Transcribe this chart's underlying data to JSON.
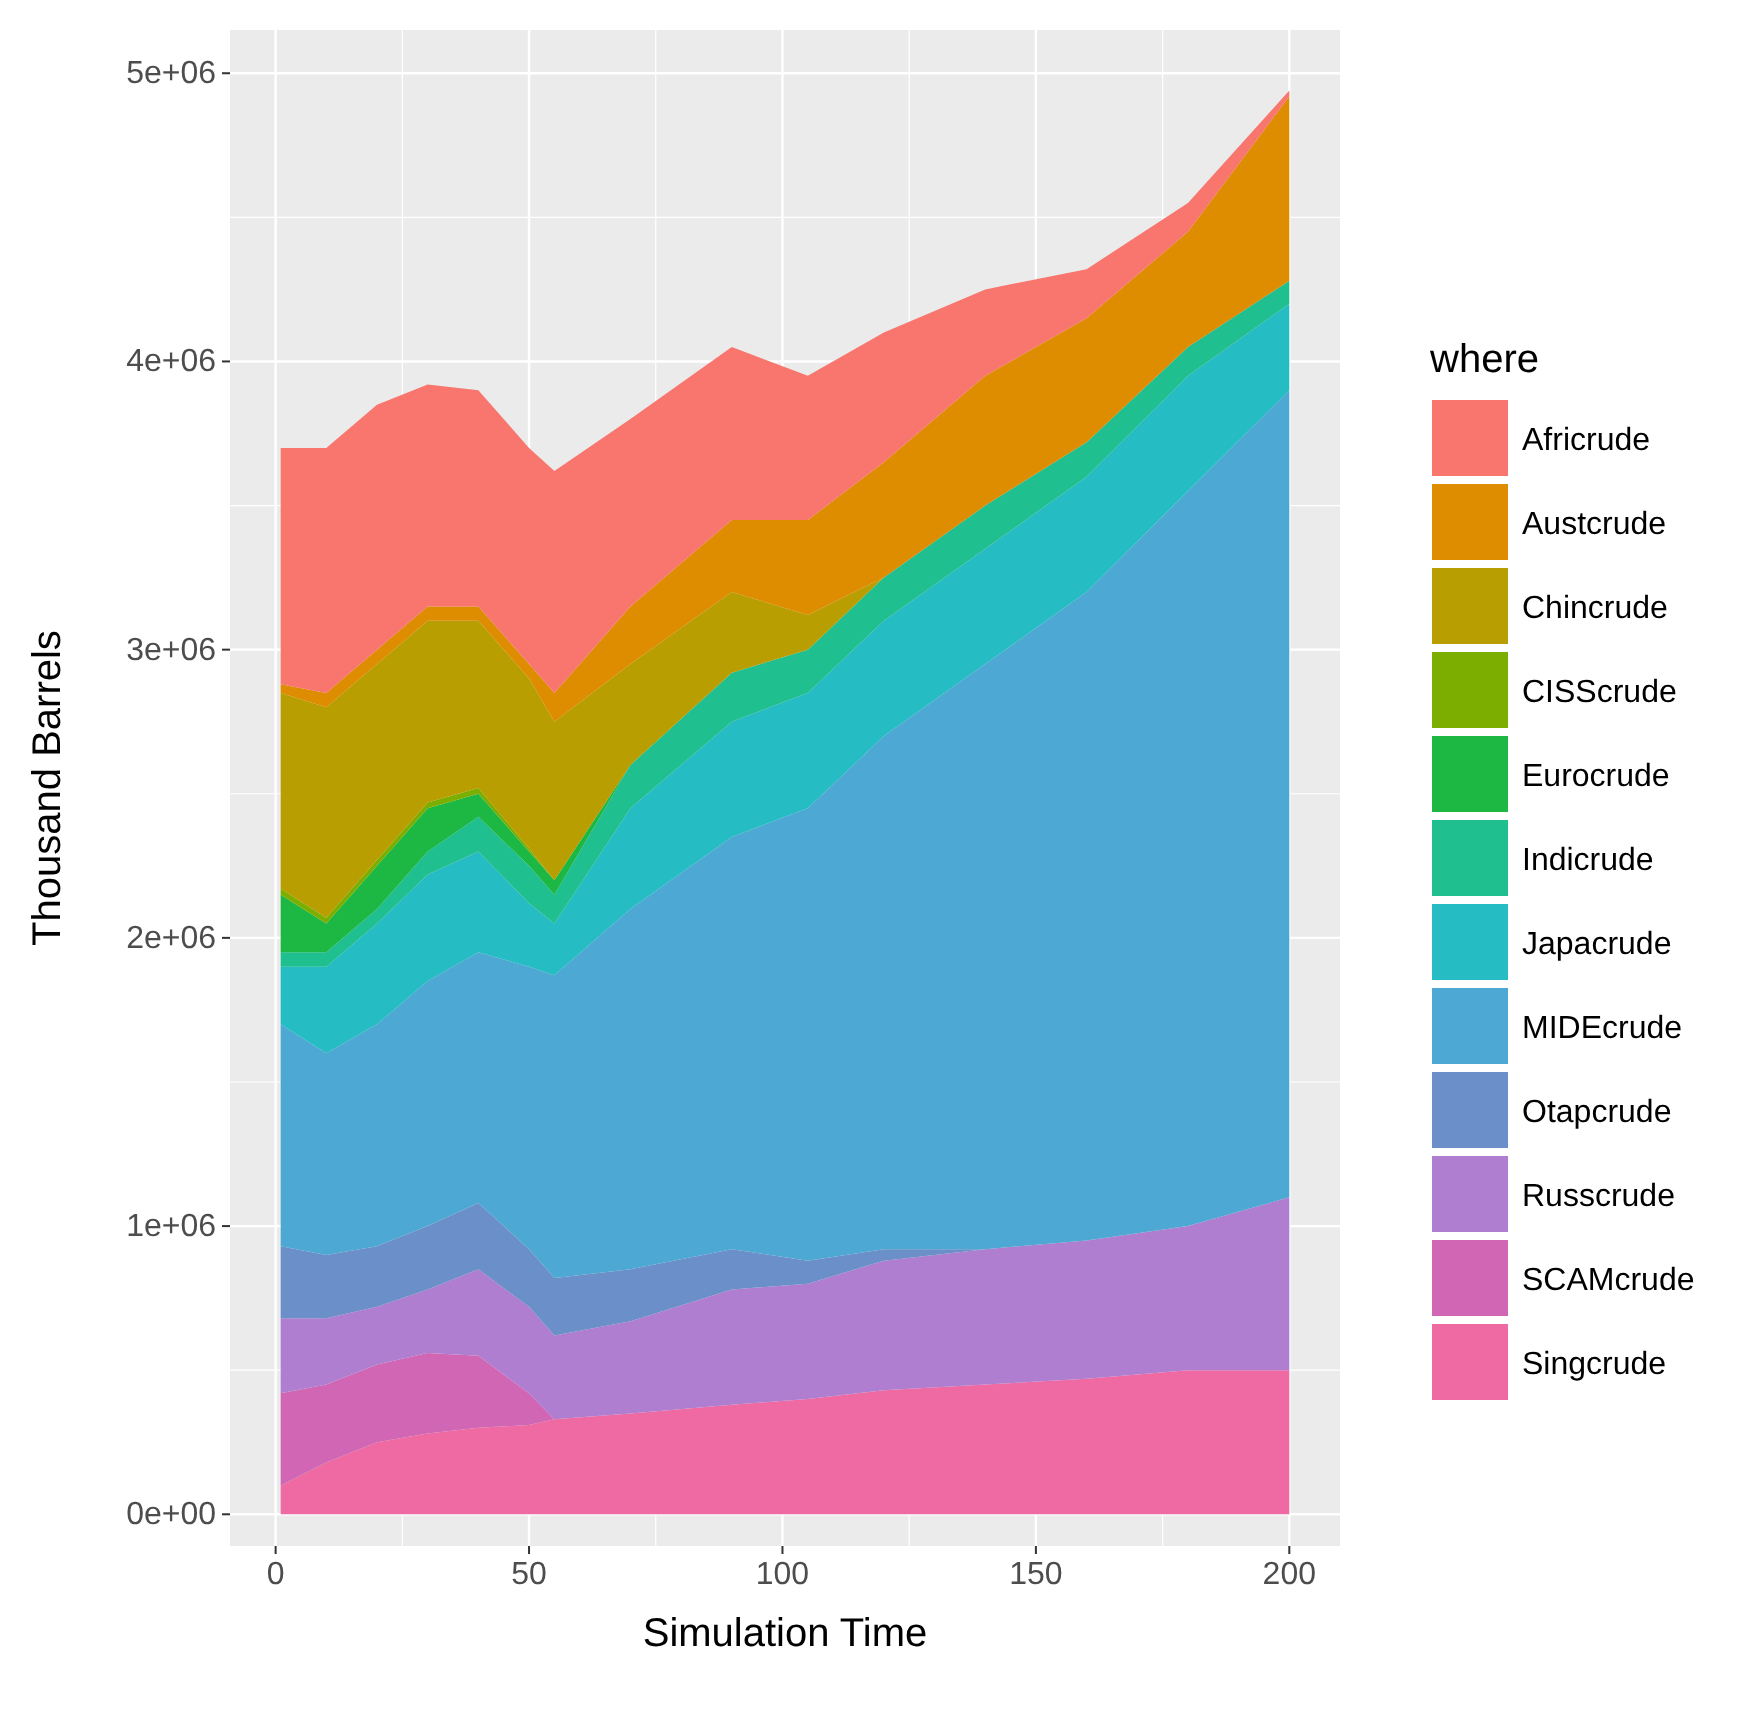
{
  "chart_data": {
    "type": "area",
    "stacked": true,
    "xlabel": "Simulation Time",
    "ylabel": "Thousand Barrels",
    "legend_title": "where",
    "legend": "right",
    "grid": true,
    "x": [
      1,
      10,
      20,
      30,
      40,
      50,
      55,
      70,
      90,
      105,
      120,
      140,
      160,
      180,
      200
    ],
    "xlim": [
      -9,
      210
    ],
    "xticks": [
      0,
      50,
      100,
      150,
      200
    ],
    "ylim": [
      -110000,
      5150000
    ],
    "yticks": [
      {
        "value": 0,
        "label": "0e+00"
      },
      {
        "value": 1000000,
        "label": "1e+06"
      },
      {
        "value": 2000000,
        "label": "2e+06"
      },
      {
        "value": 3000000,
        "label": "3e+06"
      },
      {
        "value": 4000000,
        "label": "4e+06"
      },
      {
        "value": 5000000,
        "label": "5e+06"
      }
    ],
    "series": [
      {
        "name": "Singcrude",
        "color": "#ef6aa2",
        "values": [
          100000,
          180000,
          250000,
          280000,
          300000,
          310000,
          330000,
          350000,
          380000,
          400000,
          430000,
          450000,
          470000,
          500000,
          500000
        ]
      },
      {
        "name": "SCAMcrude",
        "color": "#d066b4",
        "values": [
          320000,
          270000,
          270000,
          280000,
          250000,
          110000,
          0,
          0,
          0,
          0,
          0,
          0,
          0,
          0,
          0
        ]
      },
      {
        "name": "Russcrude",
        "color": "#b07ed0",
        "values": [
          260000,
          230000,
          200000,
          220000,
          300000,
          300000,
          290000,
          320000,
          400000,
          400000,
          450000,
          470000,
          480000,
          500000,
          600000
        ]
      },
      {
        "name": "Otapcrude",
        "color": "#6b8fc8",
        "values": [
          250000,
          220000,
          210000,
          220000,
          230000,
          200000,
          200000,
          180000,
          140000,
          80000,
          40000,
          0,
          0,
          0,
          0
        ]
      },
      {
        "name": "MIDEcrude",
        "color": "#4ea8d4",
        "values": [
          770000,
          700000,
          770000,
          850000,
          870000,
          980000,
          1050000,
          1250000,
          1430000,
          1570000,
          1780000,
          2030000,
          2250000,
          2550000,
          2800000
        ]
      },
      {
        "name": "Japacrude",
        "color": "#26bcc4",
        "values": [
          200000,
          300000,
          350000,
          370000,
          350000,
          220000,
          180000,
          350000,
          400000,
          400000,
          400000,
          400000,
          400000,
          400000,
          300000
        ]
      },
      {
        "name": "Indicrude",
        "color": "#1fbf8f",
        "values": [
          50000,
          50000,
          50000,
          80000,
          120000,
          130000,
          100000,
          150000,
          170000,
          150000,
          150000,
          150000,
          120000,
          100000,
          80000
        ]
      },
      {
        "name": "Eurocrude",
        "color": "#1db843",
        "values": [
          200000,
          100000,
          150000,
          150000,
          80000,
          50000,
          50000,
          0,
          0,
          0,
          0,
          0,
          0,
          0,
          0
        ]
      },
      {
        "name": "CISScrude",
        "color": "#7cae00",
        "values": [
          20000,
          20000,
          20000,
          20000,
          20000,
          10000,
          0,
          0,
          0,
          0,
          0,
          0,
          0,
          0,
          0
        ]
      },
      {
        "name": "Chincrude",
        "color": "#b89e00",
        "values": [
          680000,
          730000,
          680000,
          630000,
          580000,
          590000,
          550000,
          350000,
          280000,
          120000,
          0,
          0,
          0,
          0,
          0
        ]
      },
      {
        "name": "Austcrude",
        "color": "#de8c00",
        "values": [
          30000,
          50000,
          50000,
          50000,
          50000,
          50000,
          100000,
          200000,
          250000,
          330000,
          400000,
          450000,
          430000,
          400000,
          640000
        ]
      },
      {
        "name": "Africrude",
        "color": "#f8766d",
        "values": [
          820000,
          850000,
          850000,
          770000,
          750000,
          750000,
          770000,
          650000,
          600000,
          500000,
          450000,
          300000,
          170000,
          100000,
          20000
        ]
      }
    ]
  }
}
